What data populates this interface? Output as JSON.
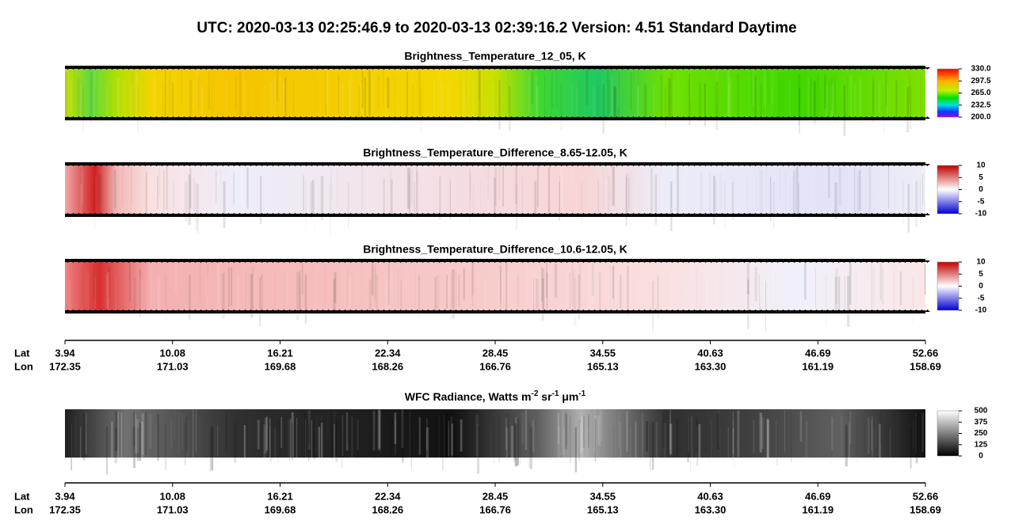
{
  "header": {
    "title": "UTC:  2020-03-13   02:25:46.9  to  2020-03-13   02:39:16.2    Version: 4.51  Standard Daytime"
  },
  "panels": [
    {
      "title": "Brightness_Temperature_12_05, K",
      "colorbar": [
        {
          "value": 330,
          "label": "330.0"
        },
        {
          "value": 297.5,
          "label": "297.5"
        },
        {
          "value": 265,
          "label": "265.0"
        },
        {
          "value": 232.5,
          "label": "232.5"
        },
        {
          "value": 200,
          "label": "200.0"
        }
      ]
    },
    {
      "title": "Brightness_Temperature_Difference_8.65-12.05, K",
      "colorbar": [
        10,
        5,
        0,
        -5,
        -10
      ]
    },
    {
      "title": "Brightness_Temperature_Difference_10.6-12.05, K",
      "colorbar": [
        10,
        5,
        0,
        -5,
        -10
      ]
    },
    {
      "title_parts": [
        "WFC Radiance, Watts m",
        "-2",
        " sr",
        "-1",
        " μm",
        "-1"
      ],
      "colorbar": [
        500,
        375,
        250,
        125,
        0
      ]
    }
  ],
  "axis": {
    "lat_label": "Lat",
    "lon_label": "Lon",
    "lat": [
      "3.94",
      "10.08",
      "16.21",
      "22.34",
      "28.45",
      "34.55",
      "40.63",
      "46.69",
      "52.66"
    ],
    "lon": [
      "172.35",
      "171.03",
      "169.68",
      "168.26",
      "166.76",
      "165.13",
      "163.30",
      "161.19",
      "158.69"
    ]
  }
}
